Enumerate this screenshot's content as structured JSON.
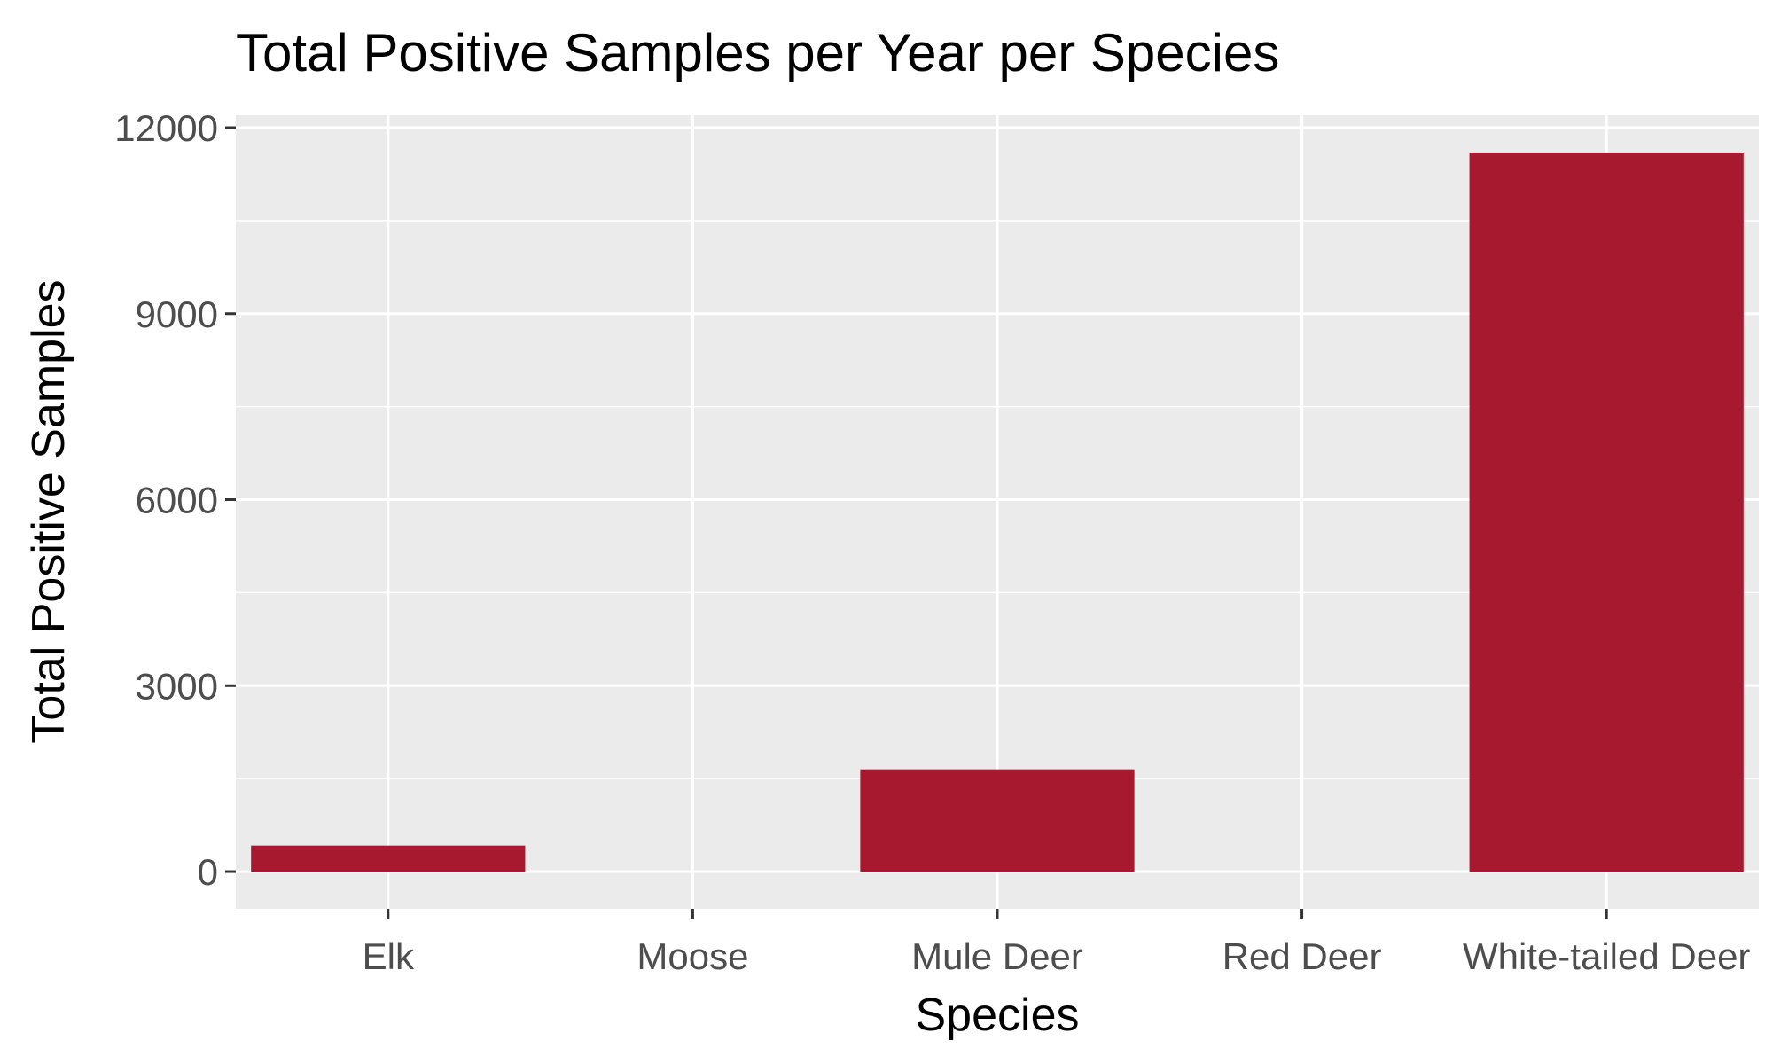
{
  "chart_data": {
    "type": "bar",
    "title": "Total Positive Samples per Year per Species",
    "xlabel": "Species",
    "ylabel": "Total Positive Samples",
    "categories": [
      "Elk",
      "Moose",
      "Mule Deer",
      "Red Deer",
      "White-tailed Deer"
    ],
    "values": [
      420,
      0,
      1650,
      0,
      11600
    ],
    "ylim": [
      -600,
      12200
    ],
    "yticks": [
      0,
      3000,
      6000,
      9000,
      12000
    ],
    "ytick_labels": [
      "0",
      "3000",
      "6000",
      "9000",
      "12000"
    ],
    "grid": true,
    "bar_color": "#A6192E",
    "panel_background": "#EBEBEB",
    "grid_color": "#FFFFFF"
  }
}
